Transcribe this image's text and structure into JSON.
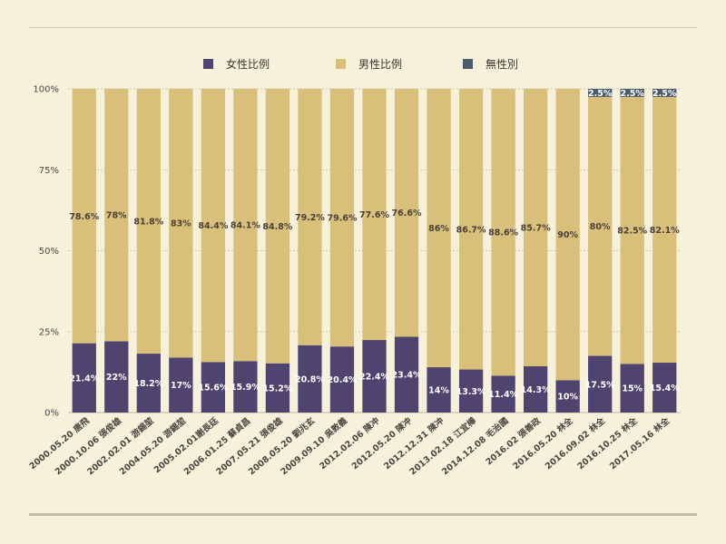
{
  "colors": {
    "female": "#4f4470",
    "male": "#d9c07a",
    "none": "#4b5b6e",
    "grid": "#bfb59a",
    "background": "#f7f1dc"
  },
  "chart_data": {
    "type": "bar",
    "stacked": true,
    "title": "",
    "xlabel": "",
    "ylabel": "",
    "ylim": [
      0,
      100
    ],
    "y_ticks": [
      "0%",
      "25%",
      "50%",
      "75%",
      "100%"
    ],
    "legend_position": "top",
    "categories": [
      "2000.05.20 唐飛",
      "2000.10.06 張俊雄",
      "2002.02.01 游錫堃",
      "2004.05.20 游錫堃",
      "2005.02.01謝長廷",
      "2006.01.25 蘇貞昌",
      "2007.05.21 張俊雄",
      "2008.05.20 劉兆玄",
      "2009.09.10 吳敦義",
      "2012.02.06 陳冲",
      "2012.05.20 陳冲",
      "2012.12.31 陳冲",
      "2013.02.18 江宜樺",
      "2014.12.08 毛治國",
      "2016.02 張善政",
      "2016.05.20 林全",
      "2016.09.02 林全",
      "2016.10.25 林全",
      "2017.05.16 林全"
    ],
    "series": [
      {
        "name": "女性比例",
        "values": [
          21.4,
          22,
          18.2,
          17,
          15.6,
          15.9,
          15.2,
          20.8,
          20.4,
          22.4,
          23.4,
          14,
          13.3,
          11.4,
          14.3,
          10,
          17.5,
          15,
          15.4
        ],
        "labels": [
          "21.4%",
          "22%",
          "18.2%",
          "17%",
          "15.6%",
          "15.9%",
          "15.2%",
          "20.8%",
          "20.4%",
          "22.4%",
          "23.4%",
          "14%",
          "13.3%",
          "11.4%",
          "14.3%",
          "10%",
          "17.5%",
          "15%",
          "15.4%"
        ]
      },
      {
        "name": "男性比例",
        "values": [
          78.6,
          78,
          81.8,
          83,
          84.4,
          84.1,
          84.8,
          79.2,
          79.6,
          77.6,
          76.6,
          86,
          86.7,
          88.6,
          85.7,
          90,
          80,
          82.5,
          82.1
        ],
        "labels": [
          "78.6%",
          "78%",
          "81.8%",
          "83%",
          "84.4%",
          "84.1%",
          "84.8%",
          "79.2%",
          "79.6%",
          "77.6%",
          "76.6%",
          "86%",
          "86.7%",
          "88.6%",
          "85.7%",
          "90%",
          "80%",
          "82.5%",
          "82.1%"
        ]
      },
      {
        "name": "無性別",
        "values": [
          0,
          0,
          0,
          0,
          0,
          0,
          0,
          0,
          0,
          0,
          0,
          0,
          0,
          0,
          0,
          0,
          2.5,
          2.5,
          2.5
        ],
        "labels": [
          "",
          "",
          "",
          "",
          "",
          "",
          "",
          "",
          "",
          "",
          "",
          "",
          "",
          "",
          "",
          "",
          "2.5%",
          "2.5%",
          "2.5%"
        ]
      }
    ]
  }
}
